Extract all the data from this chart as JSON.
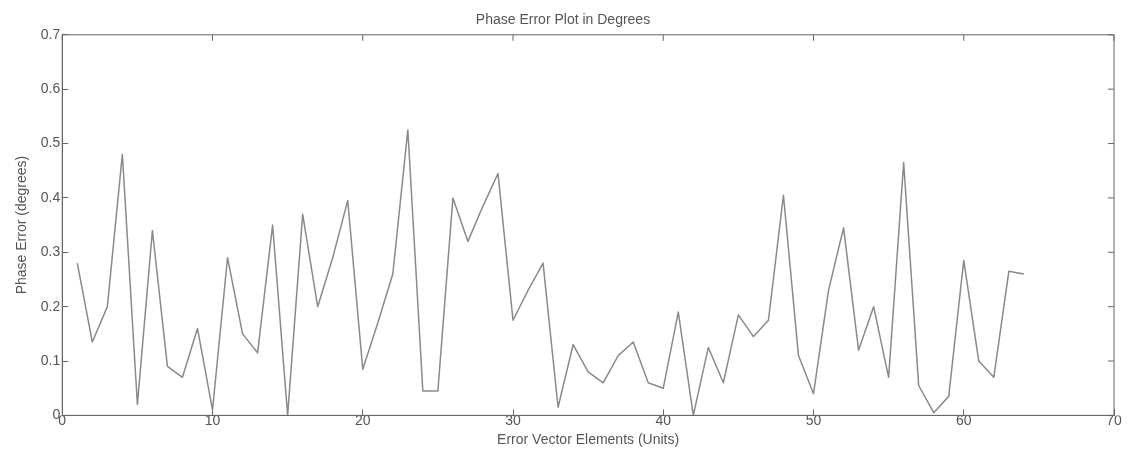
{
  "chart_data": {
    "type": "line",
    "title": "Phase Error Plot in Degrees",
    "xlabel": "Error Vector Elements (Units)",
    "ylabel": "Phase Error (degrees)",
    "x": [
      1,
      2,
      3,
      4,
      5,
      6,
      7,
      8,
      9,
      10,
      11,
      12,
      13,
      14,
      15,
      16,
      17,
      18,
      19,
      20,
      21,
      22,
      23,
      24,
      25,
      26,
      27,
      28,
      29,
      30,
      31,
      32,
      33,
      34,
      35,
      36,
      37,
      38,
      39,
      40,
      41,
      42,
      43,
      44,
      45,
      46,
      47,
      48,
      49,
      50,
      51,
      52,
      53,
      54,
      55,
      56,
      57,
      58,
      59,
      60,
      61,
      62,
      63,
      64
    ],
    "series": [
      {
        "color": "#8a8a8a",
        "values": [
          0.28,
          0.135,
          0.2,
          0.48,
          0.02,
          0.34,
          0.09,
          0.07,
          0.16,
          0.01,
          0.29,
          0.15,
          0.115,
          0.35,
          0.0,
          0.37,
          0.2,
          0.29,
          0.395,
          0.085,
          0.17,
          0.26,
          0.525,
          0.045,
          0.045,
          0.4,
          0.32,
          0.385,
          0.445,
          0.175,
          0.23,
          0.28,
          0.015,
          0.13,
          0.08,
          0.06,
          0.11,
          0.135,
          0.06,
          0.05,
          0.19,
          0.0,
          0.125,
          0.06,
          0.185,
          0.145,
          0.175,
          0.405,
          0.11,
          0.04,
          0.23,
          0.345,
          0.12,
          0.2,
          0.07,
          0.465,
          0.055,
          0.005,
          0.035,
          0.285,
          0.1,
          0.07,
          0.265,
          0.26
        ]
      }
    ],
    "xlim": [
      0,
      70
    ],
    "ylim": [
      0,
      0.7
    ],
    "xticks": [
      0,
      10,
      20,
      30,
      40,
      50,
      60,
      70
    ],
    "yticks": [
      0,
      0.1,
      0.2,
      0.3,
      0.4,
      0.5,
      0.6,
      0.7
    ],
    "grid": false,
    "legend": false,
    "marker": "none",
    "line_style": "solid"
  }
}
